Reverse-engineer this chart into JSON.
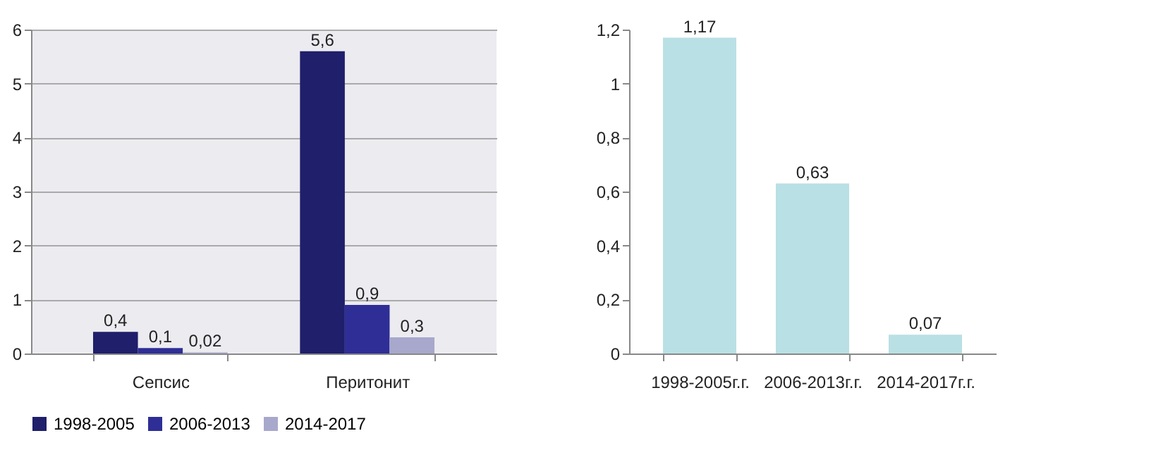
{
  "chart_data": [
    {
      "type": "bar",
      "categories": [
        "Сепсис",
        "Перитонит"
      ],
      "series": [
        {
          "name": "1998-2005",
          "color": "#1f1f6b",
          "values": [
            0.4,
            5.6
          ],
          "value_labels": [
            "0,4",
            "5,6"
          ]
        },
        {
          "name": "2006-2013",
          "color": "#2e2e96",
          "values": [
            0.1,
            0.9
          ],
          "value_labels": [
            "0,1",
            "0,9"
          ]
        },
        {
          "name": "2014-2017",
          "color": "#a8a8cc",
          "values": [
            0.02,
            0.3
          ],
          "value_labels": [
            "0,02",
            "0,3"
          ]
        }
      ],
      "ylim": [
        0,
        6
      ],
      "yticks": [
        0,
        1,
        2,
        3,
        4,
        5,
        6
      ],
      "grid": "y",
      "legend": "bottom"
    },
    {
      "type": "bar",
      "categories": [
        "1998-2005г.г.",
        "2006-2013г.г.",
        "2014-2017г.г."
      ],
      "series": [
        {
          "color": "#b9e0e4",
          "values": [
            1.17,
            0.63,
            0.07
          ],
          "value_labels": [
            "1,17",
            "0,63",
            "0,07"
          ]
        }
      ],
      "ylim": [
        0,
        1.2
      ],
      "yticks": [
        0,
        {
          "value": 0.2,
          "label": "0,2"
        },
        {
          "value": 0.4,
          "label": "0,4"
        },
        {
          "value": 0.6,
          "label": "0,6"
        },
        {
          "value": 0.8,
          "label": "0,8"
        },
        1,
        {
          "value": 1.2,
          "label": "1,2"
        }
      ]
    }
  ]
}
